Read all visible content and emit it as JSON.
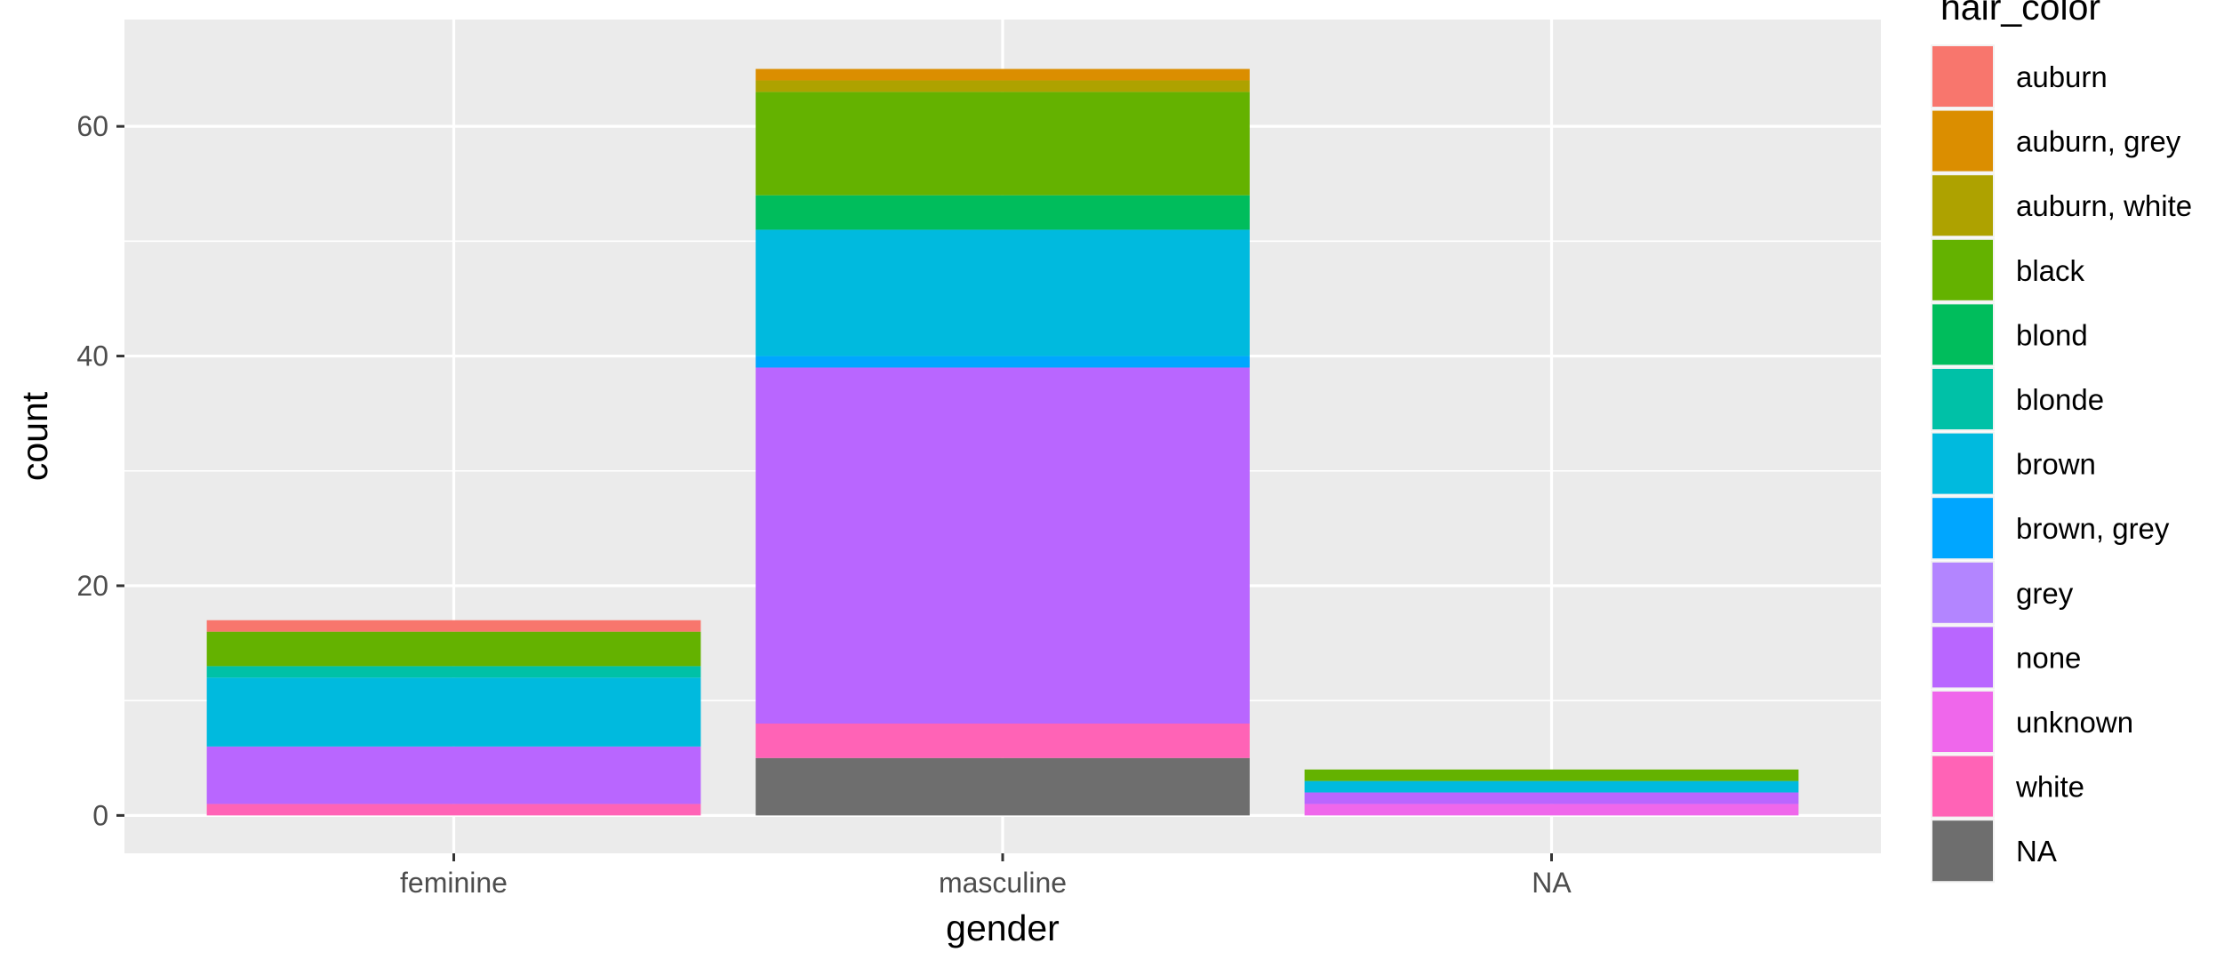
{
  "chart_data": {
    "type": "bar",
    "stacked": true,
    "xlabel": "gender",
    "ylabel": "count",
    "categories": [
      "feminine",
      "masculine",
      "NA"
    ],
    "ylim": [
      -3.3,
      69.3
    ],
    "yticks": [
      0,
      20,
      40,
      60
    ],
    "grid": true,
    "legend_title": "hair_color",
    "legend_position": "right",
    "series": [
      {
        "name": "auburn",
        "color": "#F8766D",
        "values": [
          1,
          0,
          0
        ]
      },
      {
        "name": "auburn, grey",
        "color": "#DB8E00",
        "values": [
          0,
          1,
          0
        ]
      },
      {
        "name": "auburn, white",
        "color": "#AEA200",
        "values": [
          0,
          1,
          0
        ]
      },
      {
        "name": "black",
        "color": "#64B200",
        "values": [
          3,
          9,
          1
        ]
      },
      {
        "name": "blond",
        "color": "#00BD5C",
        "values": [
          0,
          3,
          0
        ]
      },
      {
        "name": "blonde",
        "color": "#00C1A7",
        "values": [
          1,
          0,
          0
        ]
      },
      {
        "name": "brown",
        "color": "#00BADE",
        "values": [
          6,
          11,
          1
        ]
      },
      {
        "name": "brown, grey",
        "color": "#00A6FF",
        "values": [
          0,
          1,
          0
        ]
      },
      {
        "name": "grey",
        "color": "#B385FF",
        "values": [
          0,
          0,
          0
        ]
      },
      {
        "name": "none",
        "color": "#B966FF",
        "values": [
          5,
          31,
          1
        ]
      },
      {
        "name": "unknown",
        "color": "#EF67EB",
        "values": [
          0,
          0,
          1
        ]
      },
      {
        "name": "white",
        "color": "#FF63B6",
        "values": [
          1,
          3,
          0
        ]
      },
      {
        "name": "NA",
        "color": "#6E6E6E",
        "values": [
          0,
          5,
          0
        ]
      }
    ]
  }
}
